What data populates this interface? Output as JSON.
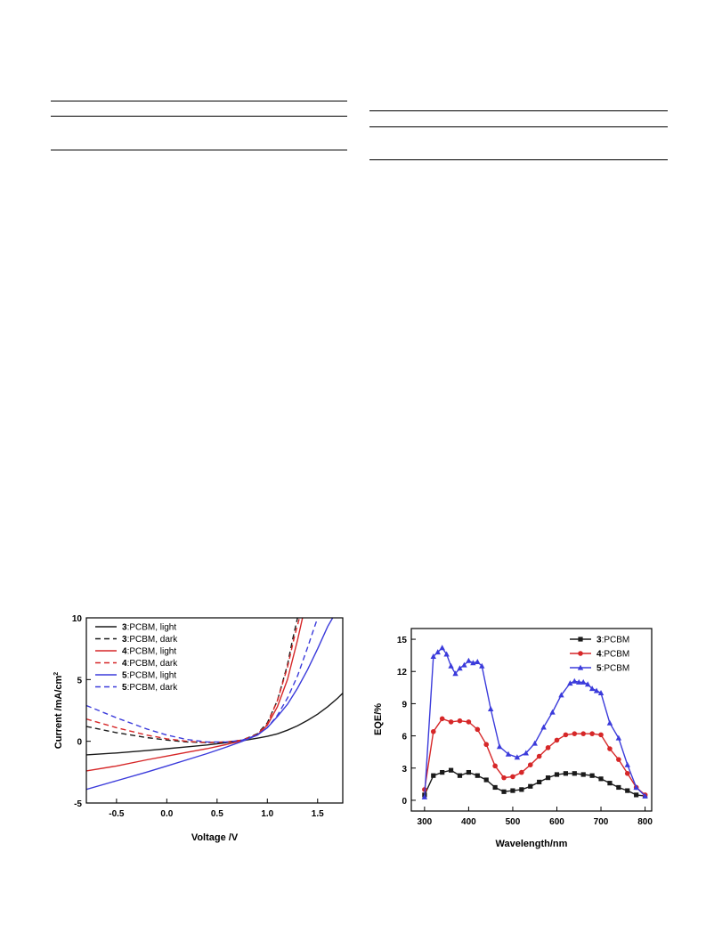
{
  "chart_data": [
    {
      "id": "jv",
      "type": "line",
      "title": "",
      "xlabel": "Voltage /V",
      "ylabel": "Current /mA/cm",
      "ylabel_sup": "2",
      "xlim": [
        -0.8,
        1.75
      ],
      "ylim": [
        -5,
        10
      ],
      "xticks": [
        "-0.5",
        "0.0",
        "0.5",
        "1.0",
        "1.5"
      ],
      "xtick_values": [
        -0.5,
        0.0,
        0.5,
        1.0,
        1.5
      ],
      "yticks": [
        "-5",
        "0",
        "5",
        "10"
      ],
      "ytick_values": [
        -5,
        0,
        5,
        10
      ],
      "legend_position": "top-left",
      "series": [
        {
          "name_bold": "3",
          "name_rest": ":PCBM, light",
          "color": "#1a1a1a",
          "dash": "solid",
          "x": [
            -0.8,
            -0.5,
            -0.2,
            0.0,
            0.2,
            0.4,
            0.6,
            0.75,
            0.9,
            1.0,
            1.1,
            1.2,
            1.3,
            1.4,
            1.5,
            1.6,
            1.7,
            1.75
          ],
          "y": [
            -1.1,
            -0.95,
            -0.75,
            -0.6,
            -0.45,
            -0.3,
            -0.1,
            0.05,
            0.25,
            0.4,
            0.6,
            0.9,
            1.25,
            1.7,
            2.2,
            2.8,
            3.5,
            3.9
          ]
        },
        {
          "name_bold": "3",
          "name_rest": ":PCBM, dark",
          "color": "#1a1a1a",
          "dash": "dashed",
          "x": [
            -0.8,
            -0.5,
            -0.2,
            0.0,
            0.2,
            0.4,
            0.6,
            0.75,
            0.9,
            1.0,
            1.1,
            1.2,
            1.25,
            1.3
          ],
          "y": [
            1.2,
            0.7,
            0.3,
            0.1,
            -0.05,
            -0.1,
            -0.05,
            0.1,
            0.6,
            1.5,
            3.3,
            6.2,
            8.2,
            10
          ]
        },
        {
          "name_bold": "4",
          "name_rest": ":PCBM, light",
          "color": "#d62728",
          "dash": "solid",
          "x": [
            -0.8,
            -0.5,
            -0.2,
            0.0,
            0.2,
            0.4,
            0.6,
            0.75,
            0.9,
            1.0,
            1.1,
            1.2,
            1.3,
            1.35
          ],
          "y": [
            -2.4,
            -2.0,
            -1.5,
            -1.2,
            -0.9,
            -0.6,
            -0.25,
            0.05,
            0.5,
            1.3,
            2.8,
            5.0,
            8.2,
            10
          ]
        },
        {
          "name_bold": "4",
          "name_rest": ":PCBM, dark",
          "color": "#d62728",
          "dash": "dashed",
          "x": [
            -0.8,
            -0.5,
            -0.2,
            0.0,
            0.2,
            0.4,
            0.6,
            0.75,
            0.9,
            1.0,
            1.1,
            1.2,
            1.27,
            1.32
          ],
          "y": [
            1.8,
            1.1,
            0.5,
            0.2,
            0.0,
            -0.1,
            -0.05,
            0.1,
            0.55,
            1.4,
            3.3,
            6.0,
            8.5,
            10
          ]
        },
        {
          "name_bold": "5",
          "name_rest": ":PCBM, light",
          "color": "#3b3bdb",
          "dash": "solid",
          "x": [
            -0.8,
            -0.5,
            -0.2,
            0.0,
            0.2,
            0.4,
            0.6,
            0.75,
            0.9,
            1.0,
            1.1,
            1.2,
            1.3,
            1.4,
            1.5,
            1.6,
            1.65
          ],
          "y": [
            -3.9,
            -3.2,
            -2.5,
            -2.0,
            -1.5,
            -1.0,
            -0.45,
            0.0,
            0.5,
            1.1,
            2.0,
            3.0,
            4.3,
            5.8,
            7.5,
            9.3,
            10
          ]
        },
        {
          "name_bold": "5",
          "name_rest": ":PCBM, dark",
          "color": "#3b3bdb",
          "dash": "dashed",
          "x": [
            -0.8,
            -0.5,
            -0.2,
            0.0,
            0.2,
            0.4,
            0.6,
            0.75,
            0.9,
            1.0,
            1.1,
            1.2,
            1.3,
            1.4,
            1.45,
            1.5
          ],
          "y": [
            2.9,
            1.9,
            1.0,
            0.5,
            0.15,
            -0.05,
            -0.05,
            0.1,
            0.5,
            1.1,
            2.1,
            3.5,
            5.3,
            7.6,
            8.8,
            10
          ]
        }
      ]
    },
    {
      "id": "eqe",
      "type": "line",
      "title": "",
      "xlabel": "Wavelength/nm",
      "ylabel": "EQE/%",
      "xlim": [
        270,
        815
      ],
      "ylim": [
        -1,
        16
      ],
      "xticks": [
        "300",
        "400",
        "500",
        "600",
        "700",
        "800"
      ],
      "xtick_values": [
        300,
        400,
        500,
        600,
        700,
        800
      ],
      "yticks": [
        "0",
        "3",
        "6",
        "9",
        "12",
        "15"
      ],
      "ytick_values": [
        0,
        3,
        6,
        9,
        12,
        15
      ],
      "legend_position": "top-right",
      "series": [
        {
          "name_bold": "3",
          "name_rest": ":PCBM",
          "color": "#1a1a1a",
          "marker": "square",
          "x": [
            300,
            320,
            340,
            360,
            380,
            400,
            420,
            440,
            460,
            480,
            500,
            520,
            540,
            560,
            580,
            600,
            620,
            640,
            660,
            680,
            700,
            720,
            740,
            760,
            780,
            800
          ],
          "y": [
            0.5,
            2.3,
            2.6,
            2.8,
            2.3,
            2.6,
            2.3,
            1.9,
            1.2,
            0.8,
            0.9,
            1.0,
            1.3,
            1.7,
            2.1,
            2.4,
            2.5,
            2.5,
            2.4,
            2.3,
            2.0,
            1.6,
            1.2,
            0.9,
            0.5,
            0.4
          ]
        },
        {
          "name_bold": "4",
          "name_rest": ":PCBM",
          "color": "#d62728",
          "marker": "circle",
          "x": [
            300,
            320,
            340,
            360,
            380,
            400,
            420,
            440,
            460,
            480,
            500,
            520,
            540,
            560,
            580,
            600,
            620,
            640,
            660,
            680,
            700,
            720,
            740,
            760,
            780,
            800
          ],
          "y": [
            1.0,
            6.4,
            7.6,
            7.3,
            7.4,
            7.3,
            6.6,
            5.2,
            3.2,
            2.1,
            2.2,
            2.6,
            3.3,
            4.1,
            4.9,
            5.6,
            6.1,
            6.2,
            6.2,
            6.2,
            6.1,
            4.8,
            3.8,
            2.5,
            1.2,
            0.5
          ]
        },
        {
          "name_bold": "5",
          "name_rest": ":PCBM",
          "color": "#3b3bdb",
          "marker": "triangle",
          "x": [
            300,
            320,
            330,
            340,
            350,
            360,
            370,
            380,
            390,
            400,
            410,
            420,
            430,
            450,
            470,
            490,
            510,
            530,
            550,
            570,
            590,
            610,
            630,
            640,
            650,
            660,
            670,
            680,
            690,
            700,
            720,
            740,
            760,
            780,
            800
          ],
          "y": [
            0.3,
            13.4,
            13.8,
            14.2,
            13.6,
            12.5,
            11.8,
            12.3,
            12.6,
            13.0,
            12.8,
            12.9,
            12.5,
            8.5,
            5.0,
            4.3,
            4.0,
            4.4,
            5.3,
            6.8,
            8.2,
            9.8,
            10.9,
            11.1,
            11.0,
            11.0,
            10.8,
            10.4,
            10.2,
            10.0,
            7.2,
            5.8,
            3.3,
            1.2,
            0.4
          ]
        }
      ]
    }
  ]
}
